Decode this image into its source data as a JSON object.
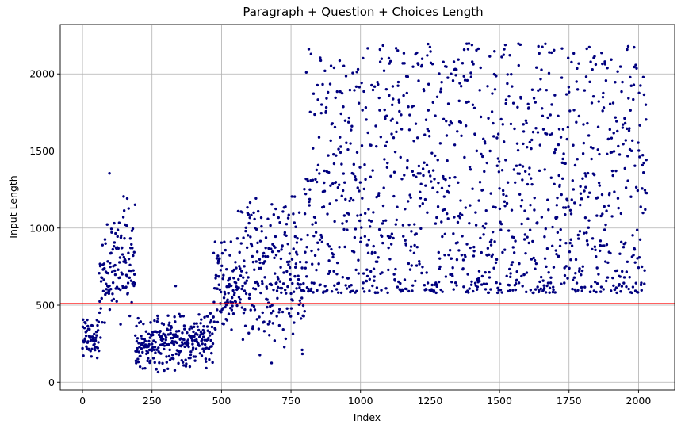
{
  "chart_data": {
    "type": "scatter",
    "title": "Paragraph + Question + Choices Length",
    "xlabel": "Index",
    "ylabel": "Input Length",
    "xlim": [
      -80,
      2130
    ],
    "ylim": [
      -50,
      2320
    ],
    "xticks": [
      0,
      250,
      500,
      750,
      1000,
      1250,
      1500,
      1750,
      2000
    ],
    "yticks": [
      0,
      500,
      1000,
      1500,
      2000
    ],
    "grid": true,
    "marker_color": "#00007f",
    "reference_line": {
      "y": 510,
      "color": "#ff0000"
    },
    "total_points": 2030,
    "segments": [
      {
        "x_range": [
          0,
          60
        ],
        "y_range": [
          130,
          420
        ]
      },
      {
        "x_range": [
          60,
          110
        ],
        "y_range": [
          220,
          1090
        ]
      },
      {
        "x_range": [
          110,
          190
        ],
        "y_range": [
          280,
          1210
        ]
      },
      {
        "x_range": [
          190,
          470
        ],
        "y_range": [
          60,
          460
        ]
      },
      {
        "x_range": [
          470,
          560
        ],
        "y_range": [
          250,
          980
        ]
      },
      {
        "x_range": [
          560,
          800
        ],
        "y_range": [
          120,
          1260
        ]
      },
      {
        "x_range": [
          800,
          2030
        ],
        "y_range": [
          580,
          2200
        ]
      }
    ],
    "outliers": [
      {
        "x": 97,
        "y": 1355
      },
      {
        "x": 148,
        "y": 1205
      },
      {
        "x": 335,
        "y": 625
      },
      {
        "x": 680,
        "y": 125
      },
      {
        "x": 790,
        "y": 210
      },
      {
        "x": 805,
        "y": 2010
      },
      {
        "x": 905,
        "y": 2040
      },
      {
        "x": 1240,
        "y": 2120
      },
      {
        "x": 1665,
        "y": 2195
      },
      {
        "x": 1870,
        "y": 2065
      },
      {
        "x": 1985,
        "y": 2045
      }
    ]
  }
}
